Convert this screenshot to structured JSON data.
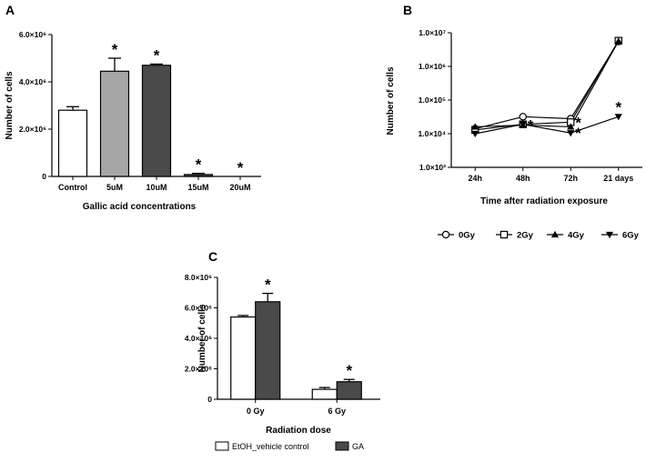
{
  "chart_data": [
    {
      "panel": "A",
      "type": "bar",
      "xlabel": "Gallic acid concentrations",
      "ylabel": "Number of cells",
      "ylim": [
        0,
        6000000
      ],
      "yticks": [
        {
          "value": 0,
          "label": "0"
        },
        {
          "value": 2000000,
          "label": "2.0×10⁶"
        },
        {
          "value": 4000000,
          "label": "4.0×10⁶"
        },
        {
          "value": 6000000,
          "label": "6.0×10⁶"
        }
      ],
      "categories": [
        "Control",
        "5uM",
        "10uM",
        "15uM",
        "20uM"
      ],
      "values": [
        2800000,
        4450000,
        4700000,
        80000,
        0
      ],
      "errors": [
        150000,
        550000,
        50000,
        50000,
        0
      ],
      "significant": [
        false,
        true,
        true,
        true,
        true
      ],
      "fills": [
        "#ffffff",
        "#a6a6a6",
        "#4a4a4a",
        "#4a4a4a",
        "#4a4a4a"
      ],
      "significance_marker": "*"
    },
    {
      "panel": "B",
      "type": "line",
      "yscale": "log",
      "xlabel": "Time after radiation exposure",
      "ylabel": "Number of cells",
      "ylim": [
        1000,
        10000000
      ],
      "yticks": [
        {
          "value": 1000,
          "label": "1.0×10³"
        },
        {
          "value": 10000,
          "label": "1.0×10⁴"
        },
        {
          "value": 100000,
          "label": "1.0×10⁵"
        },
        {
          "value": 1000000,
          "label": "1.0×10⁶"
        },
        {
          "value": 10000000,
          "label": "1.0×10⁷"
        }
      ],
      "categories": [
        "24h",
        "48h",
        "72h",
        "21 days"
      ],
      "series": [
        {
          "name": "0Gy",
          "marker": "circle-open",
          "values": [
            14000,
            32000,
            28000,
            5500000
          ]
        },
        {
          "name": "2Gy",
          "marker": "square-open",
          "values": [
            13000,
            19000,
            22000,
            5800000
          ]
        },
        {
          "name": "4Gy",
          "marker": "triangle-up-filled",
          "values": [
            16000,
            18000,
            16000,
            5600000
          ]
        },
        {
          "name": "6Gy",
          "marker": "triangle-down-filled",
          "values": [
            10000,
            19000,
            10500,
            32000
          ]
        }
      ],
      "significance_marker": "*",
      "legend_position": "bottom"
    },
    {
      "panel": "C",
      "type": "bar",
      "xlabel": "Radiation dose",
      "ylabel": "Number of cells",
      "ylim": [
        0,
        8000000
      ],
      "yticks": [
        {
          "value": 0,
          "label": "0"
        },
        {
          "value": 2000000,
          "label": "2.0×10⁶"
        },
        {
          "value": 4000000,
          "label": "4.0×10⁶"
        },
        {
          "value": 6000000,
          "label": "6.0×10⁶"
        },
        {
          "value": 8000000,
          "label": "8.0×10⁶"
        }
      ],
      "categories": [
        "0 Gy",
        "6 Gy"
      ],
      "series": [
        {
          "name": "EtOH_vehicle control",
          "fill": "#ffffff",
          "values": [
            5400000,
            650000
          ],
          "errors": [
            100000,
            120000
          ],
          "significant": [
            false,
            false
          ]
        },
        {
          "name": "GA",
          "fill": "#4a4a4a",
          "values": [
            6400000,
            1150000
          ],
          "errors": [
            550000,
            150000
          ],
          "significant": [
            true,
            true
          ]
        }
      ],
      "significance_marker": "*",
      "legend_position": "bottom"
    }
  ]
}
